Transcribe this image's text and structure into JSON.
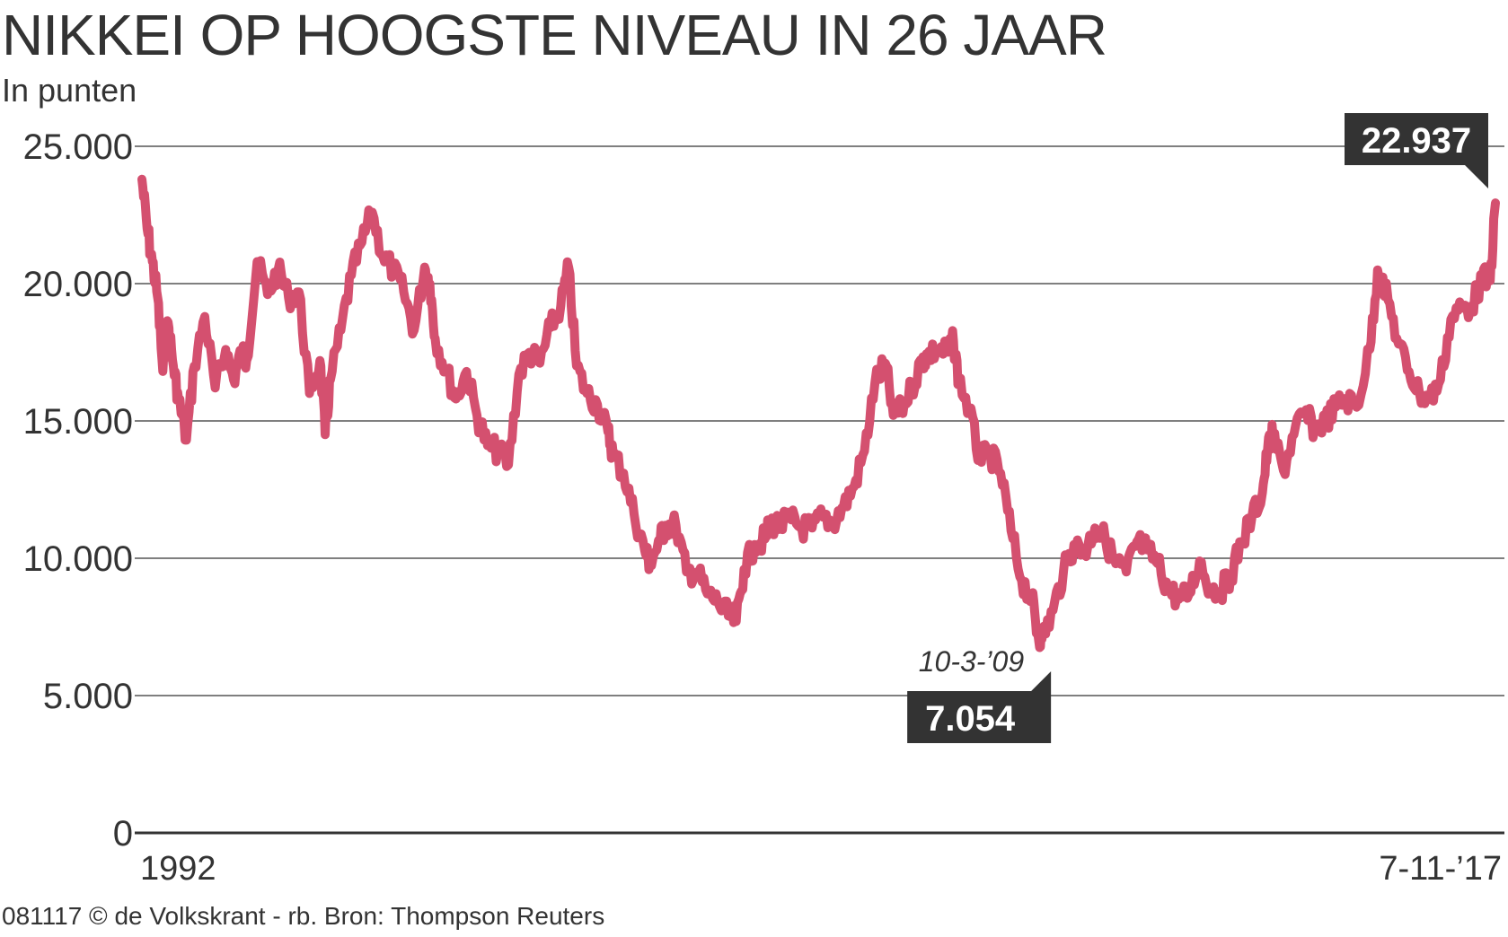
{
  "title": "NIKKEI OP HOOGSTE NIVEAU IN 26 JAAR",
  "subtitle": "In punten",
  "footer": "081117 © de Volkskrant - rb. Bron: Thompson Reuters",
  "colors": {
    "line": "#d4506f",
    "grid": "#333333",
    "label_box": "#333333"
  },
  "chart_data": {
    "type": "line",
    "title": "NIKKEI OP HOOGSTE NIVEAU IN 26 JAAR",
    "ylabel": "In punten",
    "ylim": [
      0,
      25000
    ],
    "y_ticks": [
      {
        "value": 0,
        "label": "0"
      },
      {
        "value": 5000,
        "label": "5.000"
      },
      {
        "value": 10000,
        "label": "10.000"
      },
      {
        "value": 15000,
        "label": "15.000"
      },
      {
        "value": 20000,
        "label": "20.000"
      },
      {
        "value": 25000,
        "label": "25.000"
      }
    ],
    "xlim": [
      1992.0,
      2017.85
    ],
    "x_tick_labels": [
      {
        "x": 1992.0,
        "label": "1992"
      },
      {
        "x": 2017.85,
        "label": "7-11-’17"
      }
    ],
    "grid": true,
    "series": [
      {
        "x": [
          1992.0,
          1992.1,
          1992.2,
          1992.3,
          1992.4,
          1992.5,
          1992.6,
          1992.7,
          1992.85,
          1993.0,
          1993.2,
          1993.4,
          1993.6,
          1993.75,
          1993.9,
          1994.0,
          1994.2,
          1994.4,
          1994.6,
          1994.8,
          1995.0,
          1995.2,
          1995.4,
          1995.5,
          1995.6,
          1995.8,
          1996.0,
          1996.2,
          1996.4,
          1996.6,
          1996.8,
          1997.0,
          1997.2,
          1997.4,
          1997.5,
          1997.6,
          1997.8,
          1998.0,
          1998.2,
          1998.4,
          1998.6,
          1998.8,
          1999.0,
          1999.2,
          1999.4,
          1999.6,
          1999.8,
          2000.0,
          2000.15,
          2000.3,
          2000.5,
          2000.7,
          2000.9,
          2001.0,
          2001.2,
          2001.4,
          2001.6,
          2001.7,
          2001.9,
          2002.0,
          2002.2,
          2002.4,
          2002.6,
          2002.8,
          2003.0,
          2003.2,
          2003.35,
          2003.5,
          2003.7,
          2003.9,
          2004.0,
          2004.2,
          2004.4,
          2004.6,
          2004.8,
          2005.0,
          2005.2,
          2005.4,
          2005.6,
          2005.8,
          2006.0,
          2006.2,
          2006.35,
          2006.5,
          2006.7,
          2006.9,
          2007.0,
          2007.2,
          2007.4,
          2007.5,
          2007.6,
          2007.8,
          2008.0,
          2008.2,
          2008.4,
          2008.6,
          2008.8,
          2009.0,
          2009.1,
          2009.19,
          2009.4,
          2009.6,
          2009.8,
          2010.0,
          2010.2,
          2010.4,
          2010.6,
          2010.8,
          2011.0,
          2011.2,
          2011.4,
          2011.6,
          2011.8,
          2012.0,
          2012.2,
          2012.4,
          2012.6,
          2012.8,
          2013.0,
          2013.2,
          2013.4,
          2013.5,
          2013.6,
          2013.8,
          2014.0,
          2014.2,
          2014.4,
          2014.6,
          2014.8,
          2015.0,
          2015.2,
          2015.45,
          2015.6,
          2015.8,
          2016.0,
          2016.2,
          2016.4,
          2016.6,
          2016.8,
          2017.0,
          2017.2,
          2017.4,
          2017.6,
          2017.75,
          2017.85
        ],
        "y": [
          23800,
          22000,
          20800,
          19500,
          16800,
          18600,
          17000,
          15800,
          14300,
          17000,
          18800,
          16200,
          17600,
          16500,
          17500,
          17200,
          20800,
          19600,
          20500,
          19500,
          19700,
          16000,
          17200,
          14500,
          16500,
          18300,
          20300,
          21500,
          22600,
          21000,
          20500,
          19700,
          18300,
          20600,
          20000,
          18000,
          16900,
          15800,
          16800,
          15200,
          14100,
          13900,
          13400,
          16700,
          17500,
          17100,
          18400,
          19200,
          20600,
          17000,
          16000,
          15600,
          14600,
          13800,
          13100,
          11600,
          10300,
          9800,
          10700,
          11200,
          11200,
          9500,
          9500,
          8700,
          8400,
          7900,
          7700,
          9600,
          10500,
          10700,
          11300,
          11200,
          11400,
          11100,
          11100,
          11500,
          11300,
          11900,
          12600,
          13900,
          16400,
          17100,
          15200,
          15400,
          16200,
          17200,
          17400,
          17600,
          17500,
          17900,
          16500,
          15400,
          13600,
          13800,
          13100,
          11000,
          9200,
          8500,
          7300,
          7054,
          8100,
          9500,
          10500,
          10200,
          11100,
          10700,
          9800,
          9500,
          10600,
          10300,
          9800,
          8900,
          8500,
          8700,
          9900,
          8900,
          8800,
          9400,
          10600,
          11500,
          12400,
          14000,
          14500,
          13200,
          14500,
          15300,
          14700,
          15000,
          15500,
          15800,
          15500,
          17600,
          20500,
          19400,
          17800,
          16800,
          16000,
          15800,
          16500,
          18700,
          19100,
          19200,
          20200,
          20100,
          22937
        ]
      }
    ],
    "annotations": [
      {
        "date": "10-3-’09",
        "label": "7.054",
        "x": 2009.19,
        "y": 7054
      },
      {
        "label": "22.937",
        "x": 2017.85,
        "y": 22937
      }
    ]
  }
}
